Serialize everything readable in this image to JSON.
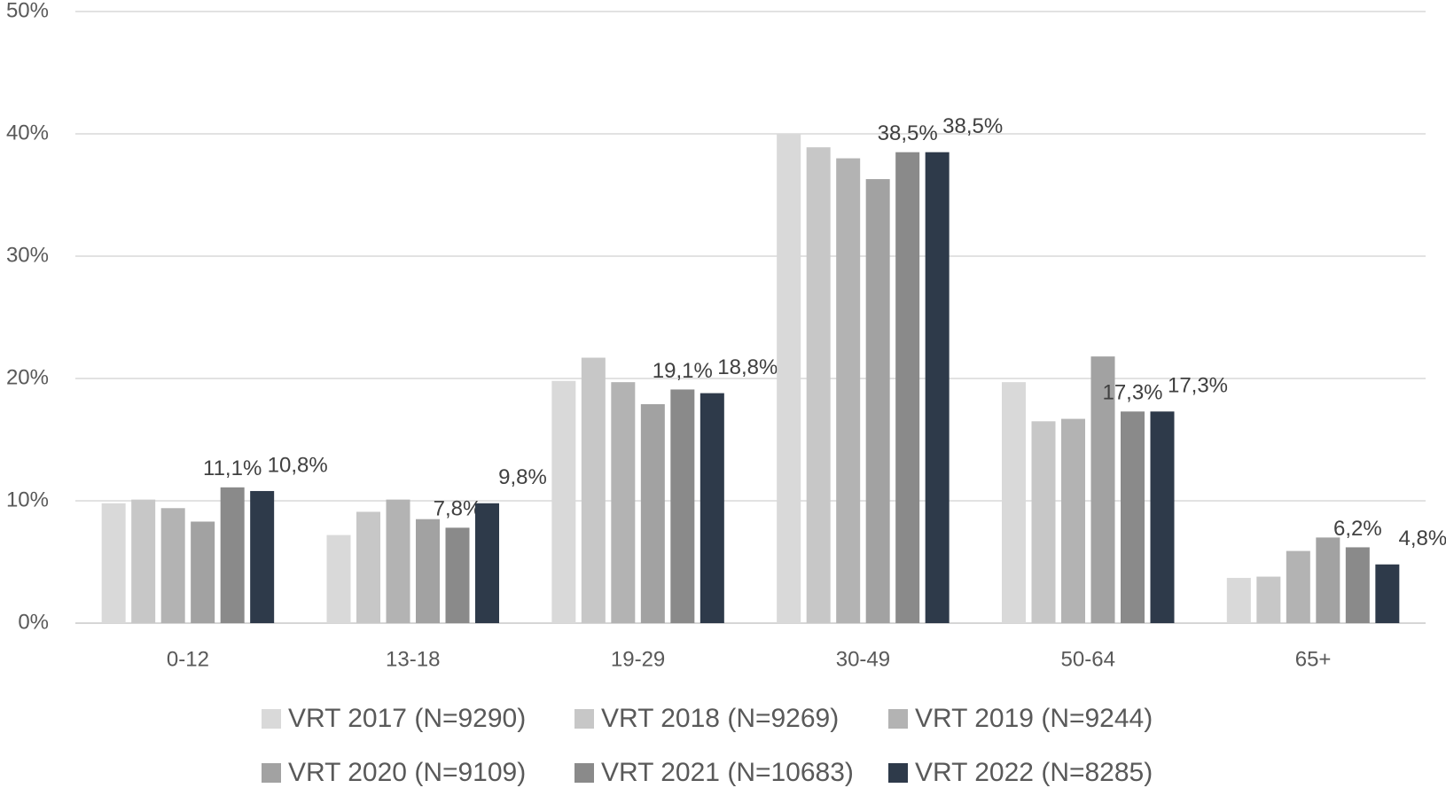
{
  "chart_data": {
    "type": "bar",
    "categories": [
      "0-12",
      "13-18",
      "19-29",
      "30-49",
      "50-64",
      "65+"
    ],
    "series": [
      {
        "name": "VRT 2017 (N=9290)",
        "color": "#d9d9d9",
        "values": [
          9.8,
          7.2,
          19.8,
          40.0,
          19.7,
          3.7
        ]
      },
      {
        "name": "VRT 2018 (N=9269)",
        "color": "#c7c7c7",
        "values": [
          10.1,
          9.1,
          21.7,
          38.9,
          16.5,
          3.8
        ]
      },
      {
        "name": "VRT 2019 (N=9244)",
        "color": "#b3b3b3",
        "values": [
          9.4,
          10.1,
          19.7,
          38.0,
          16.7,
          5.9
        ]
      },
      {
        "name": "VRT 2020 (N=9109)",
        "color": "#a2a2a2",
        "values": [
          8.3,
          8.5,
          17.9,
          36.3,
          21.8,
          7.0
        ]
      },
      {
        "name": "VRT 2021 (N=10683)",
        "color": "#8a8a8a",
        "values": [
          11.1,
          7.8,
          19.1,
          38.5,
          17.3,
          6.2
        ],
        "value_labels": [
          "11,1%",
          "7,8%",
          "19,1%",
          "38,5%",
          "17,3%",
          "6,2%"
        ]
      },
      {
        "name": "VRT 2022 (N=8285)",
        "color": "#2e3a4a",
        "values": [
          10.8,
          9.8,
          18.8,
          38.5,
          17.3,
          4.8
        ],
        "value_labels": [
          "10,8%",
          "9,8%",
          "18,8%",
          "38,5%",
          "17,3%",
          "4,8%"
        ]
      }
    ],
    "ylim": [
      0,
      50
    ],
    "yticks": [
      {
        "value": 0,
        "label": "0%"
      },
      {
        "value": 10,
        "label": "10%"
      },
      {
        "value": 20,
        "label": "20%"
      },
      {
        "value": 30,
        "label": "30%"
      },
      {
        "value": 40,
        "label": "40%"
      },
      {
        "value": 50,
        "label": "50%"
      }
    ],
    "grid": true
  }
}
